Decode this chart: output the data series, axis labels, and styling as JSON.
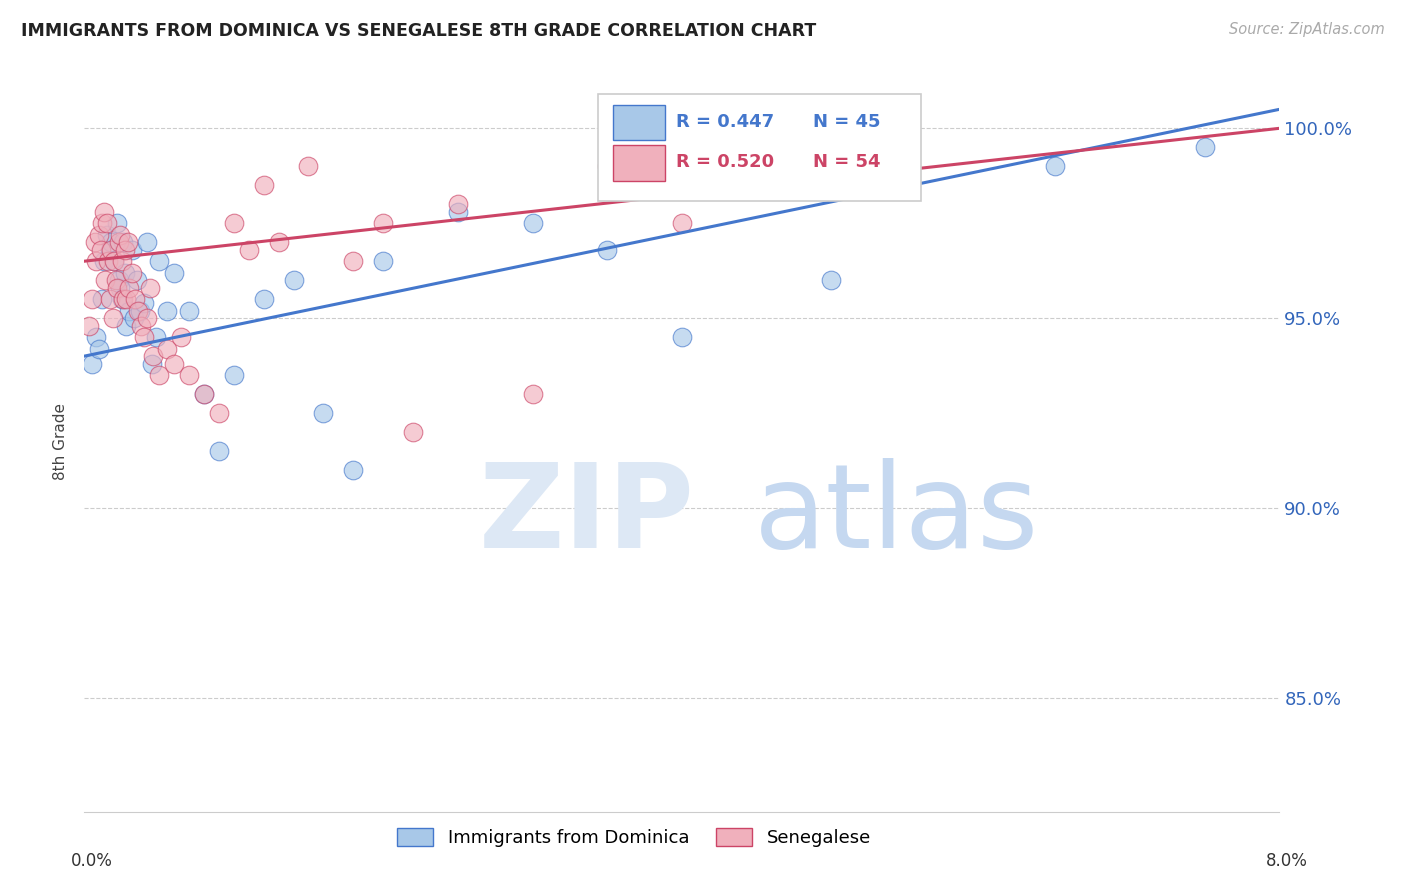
{
  "title": "IMMIGRANTS FROM DOMINICA VS SENEGALESE 8TH GRADE CORRELATION CHART",
  "source": "Source: ZipAtlas.com",
  "ylabel": "8th Grade",
  "x_range": [
    0.0,
    8.0
  ],
  "y_range": [
    82.0,
    101.5
  ],
  "blue_color": "#a8c8e8",
  "pink_color": "#f0b0bc",
  "blue_line_color": "#4477cc",
  "pink_line_color": "#cc4466",
  "legend_label_blue": "Immigrants from Dominica",
  "legend_label_pink": "Senegalese",
  "blue_x": [
    0.05,
    0.08,
    0.1,
    0.12,
    0.13,
    0.15,
    0.17,
    0.18,
    0.2,
    0.22,
    0.23,
    0.24,
    0.25,
    0.26,
    0.27,
    0.28,
    0.3,
    0.32,
    0.33,
    0.35,
    0.37,
    0.4,
    0.42,
    0.45,
    0.48,
    0.5,
    0.55,
    0.6,
    0.7,
    0.8,
    0.9,
    1.0,
    1.2,
    1.4,
    1.6,
    1.8,
    2.0,
    2.5,
    3.0,
    3.5,
    4.0,
    5.0,
    5.5,
    6.5,
    7.5
  ],
  "blue_y": [
    93.8,
    94.5,
    94.2,
    95.5,
    96.5,
    97.2,
    96.8,
    97.0,
    96.5,
    97.5,
    96.0,
    95.8,
    95.5,
    97.0,
    96.2,
    94.8,
    95.2,
    96.8,
    95.0,
    96.0,
    95.2,
    95.4,
    97.0,
    93.8,
    94.5,
    96.5,
    95.2,
    96.2,
    95.2,
    93.0,
    91.5,
    93.5,
    95.5,
    96.0,
    92.5,
    91.0,
    96.5,
    97.8,
    97.5,
    96.8,
    94.5,
    96.0,
    98.5,
    99.0,
    99.5
  ],
  "pink_x": [
    0.03,
    0.05,
    0.07,
    0.08,
    0.1,
    0.11,
    0.12,
    0.13,
    0.14,
    0.15,
    0.16,
    0.17,
    0.18,
    0.19,
    0.2,
    0.21,
    0.22,
    0.23,
    0.24,
    0.25,
    0.26,
    0.27,
    0.28,
    0.29,
    0.3,
    0.32,
    0.34,
    0.36,
    0.38,
    0.4,
    0.42,
    0.44,
    0.46,
    0.5,
    0.55,
    0.6,
    0.65,
    0.7,
    0.8,
    0.9,
    1.0,
    1.1,
    1.2,
    1.3,
    1.5,
    1.8,
    2.0,
    2.2,
    2.5,
    3.0,
    3.5,
    4.0,
    4.5,
    5.0
  ],
  "pink_y": [
    94.8,
    95.5,
    97.0,
    96.5,
    97.2,
    96.8,
    97.5,
    97.8,
    96.0,
    97.5,
    96.5,
    95.5,
    96.8,
    95.0,
    96.5,
    96.0,
    95.8,
    97.0,
    97.2,
    96.5,
    95.5,
    96.8,
    95.5,
    97.0,
    95.8,
    96.2,
    95.5,
    95.2,
    94.8,
    94.5,
    95.0,
    95.8,
    94.0,
    93.5,
    94.2,
    93.8,
    94.5,
    93.5,
    93.0,
    92.5,
    97.5,
    96.8,
    98.5,
    97.0,
    99.0,
    96.5,
    97.5,
    92.0,
    98.0,
    93.0,
    99.0,
    97.5,
    99.2,
    99.5
  ],
  "blue_line_x0": 0.0,
  "blue_line_y0": 94.0,
  "blue_line_x1": 8.0,
  "blue_line_y1": 100.5,
  "pink_line_x0": 0.0,
  "pink_line_y0": 96.5,
  "pink_line_x1": 8.0,
  "pink_line_y1": 100.0
}
